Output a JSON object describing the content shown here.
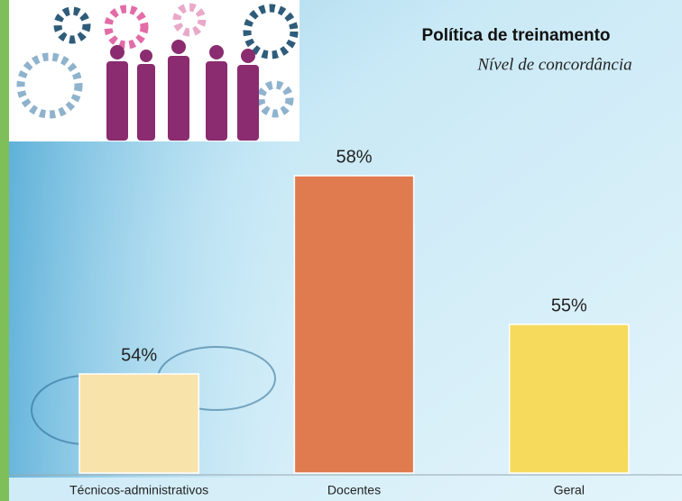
{
  "chart_data": {
    "type": "bar",
    "title": "Política de treinamento",
    "subtitle": "Nível de concordância",
    "categories": [
      "Técnicos-administrativos",
      "Docentes",
      "Geral"
    ],
    "values": [
      54,
      58,
      55
    ],
    "value_labels": [
      "54%",
      "58%",
      "55%"
    ],
    "colors": [
      "#f8e3aa",
      "#e07b50",
      "#f6da5c"
    ],
    "ylim": [
      52,
      59
    ]
  }
}
